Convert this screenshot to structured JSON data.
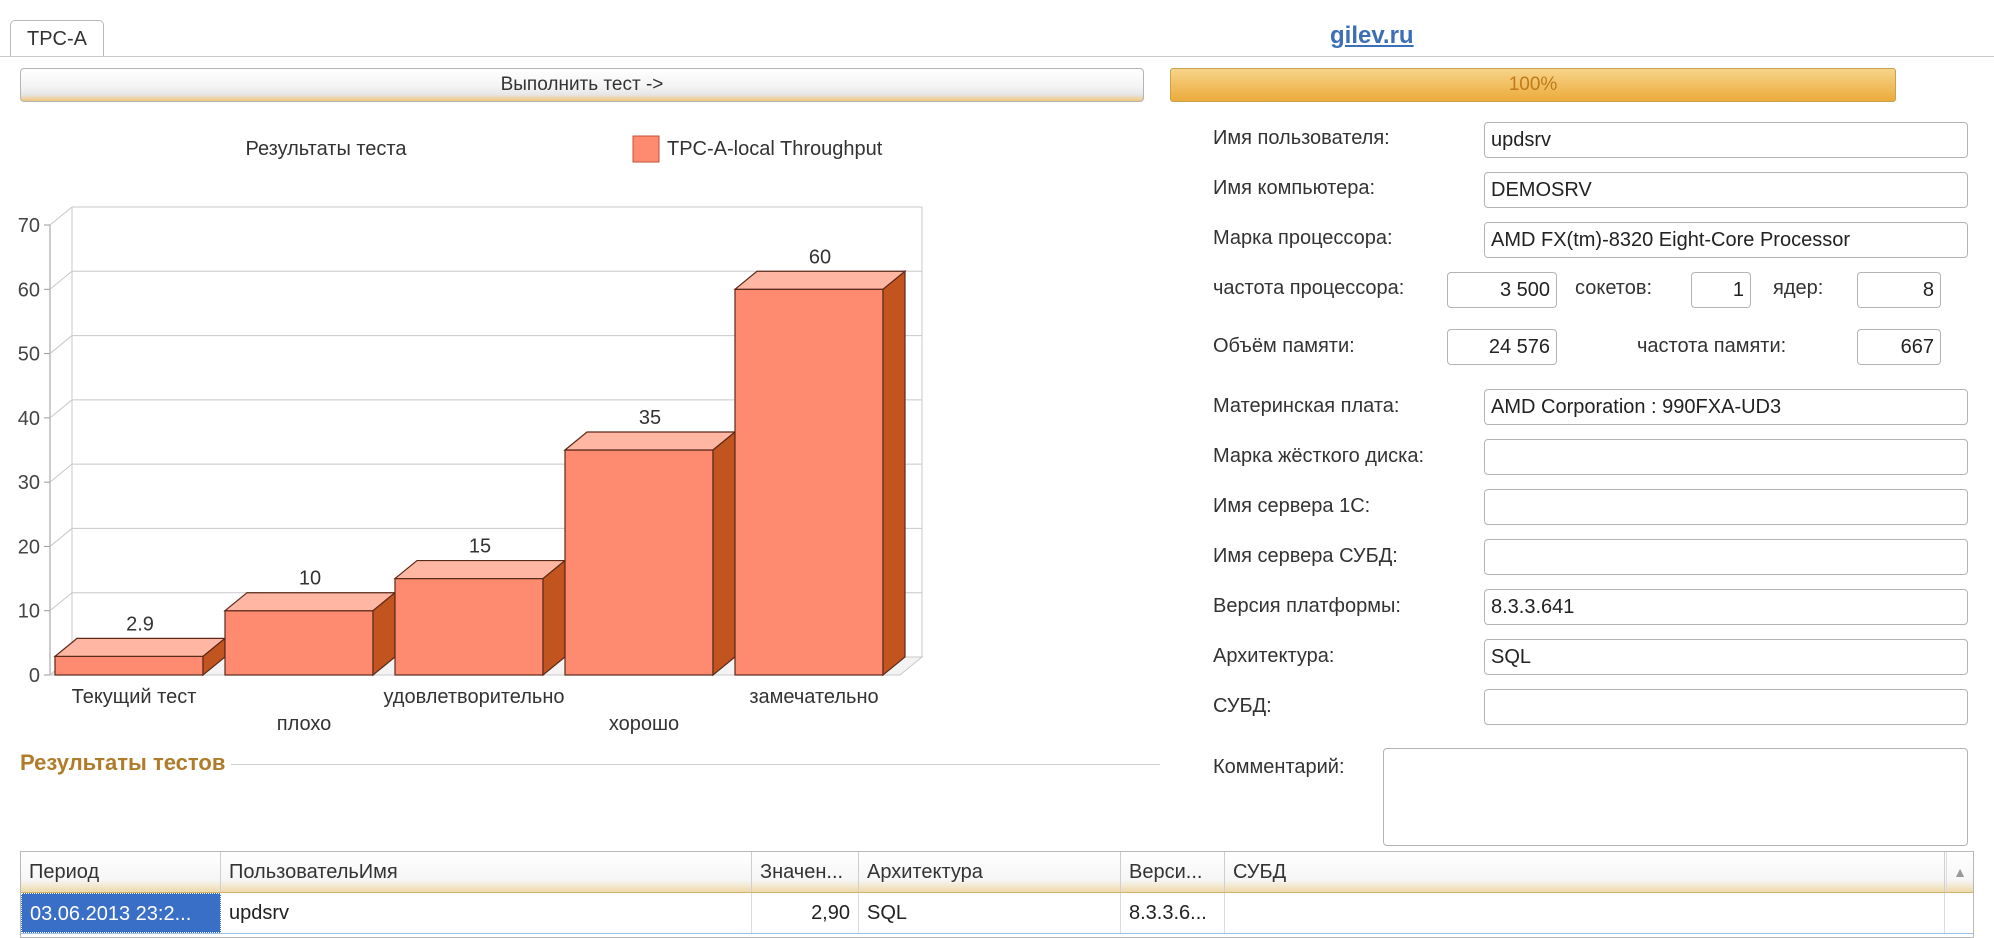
{
  "tab": {
    "label": "TPC-A"
  },
  "site_link": "gilev.ru",
  "run_button": "Выполнить тест ->",
  "progress": {
    "text": "100%",
    "value": 100
  },
  "chart_data": {
    "type": "bar",
    "title": "Результаты теста",
    "legend": "TPC-A-local Throughput",
    "categories": [
      "Текущий тест",
      "плохо",
      "удовлетворительно",
      "хорошо",
      "замечательно"
    ],
    "values": [
      2.9,
      10,
      15,
      35,
      60
    ],
    "value_labels": [
      "2.9",
      "10",
      "15",
      "35",
      "60"
    ],
    "yticks": [
      0,
      10,
      20,
      30,
      40,
      50,
      60,
      70
    ],
    "ylim": [
      0,
      70
    ],
    "grid": true,
    "color": "#fe8a6f"
  },
  "form": {
    "user_label": "Имя пользователя:",
    "user_value": "updsrv",
    "computer_label": "Имя компьютера:",
    "computer_value": "DEMOSRV",
    "cpu_label": "Марка процессора:",
    "cpu_value": "AMD FX(tm)-8320 Eight-Core Processor",
    "freq_label": "частота процессора:",
    "freq_value": "3 500",
    "sockets_label": "сокетов:",
    "sockets_value": "1",
    "cores_label": "ядер:",
    "cores_value": "8",
    "memory_label": "Объём памяти:",
    "memory_value": "24 576",
    "memfreq_label": "частота памяти:",
    "memfreq_value": "667",
    "board_label": "Материнская плата:",
    "board_value": "AMD Corporation : 990FXA-UD3",
    "disk_label": "Марка жёсткого диска:",
    "disk_value": "",
    "server1c_label": "Имя сервера 1С:",
    "server1c_value": "",
    "dbserver_label": "Имя сервера СУБД:",
    "dbserver_value": "",
    "platform_label": "Версия платформы:",
    "platform_value": "8.3.3.641",
    "arch_label": "Архитектура:",
    "arch_value": "SQL",
    "dbms_label": "СУБД:",
    "dbms_value": "",
    "comment_label": "Комментарий:",
    "comment_value": ""
  },
  "results": {
    "title": "Результаты тестов",
    "columns": [
      "Период",
      "ПользовательИмя",
      "Значен...",
      "Архитектура",
      "Верси...",
      "СУБД"
    ],
    "rows": [
      [
        "03.06.2013 23:2...",
        "updsrv",
        "2,90",
        "SQL",
        "8.3.3.6...",
        ""
      ]
    ]
  }
}
